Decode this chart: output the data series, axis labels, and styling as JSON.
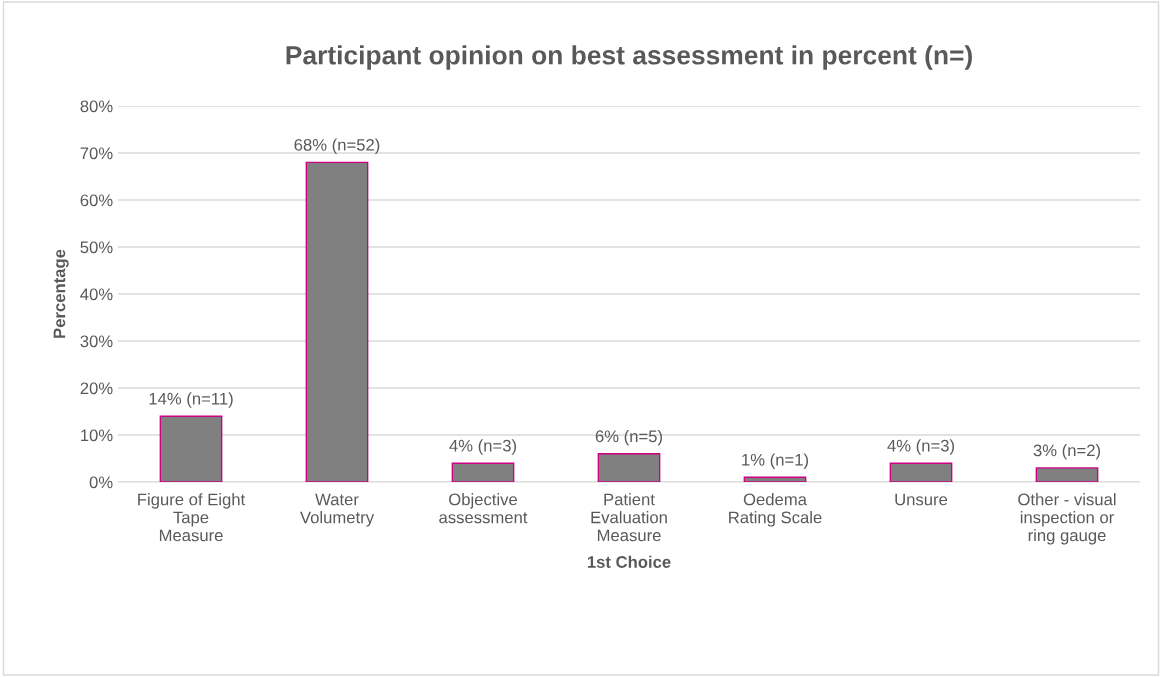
{
  "chart_data": {
    "type": "bar",
    "title": "Participant opinion on best assessment in percent (n=)",
    "xlabel": "1st Choice",
    "ylabel": "Percentage",
    "categories": [
      "Figure of Eight\nTape\nMeasure",
      "Water\nVolumetry",
      "Objective\nassessment",
      "Patient\nEvaluation\nMeasure",
      "Oedema\nRating Scale",
      "Unsure",
      "Other - visual\ninspection or\nring gauge"
    ],
    "values": [
      14,
      68,
      4,
      6,
      1,
      4,
      3
    ],
    "value_labels": [
      "14% (n=11)",
      "68% (n=52)",
      "4% (n=3)",
      "6% (n=5)",
      "1% (n=1)",
      "4% (n=3)",
      "3% (n=2)"
    ],
    "color": "#808080",
    "ylim": [
      0,
      80
    ],
    "yticks": [
      {
        "value": 0,
        "label": "0%"
      },
      {
        "value": 10,
        "label": "10%"
      },
      {
        "value": 20,
        "label": "20%"
      },
      {
        "value": 30,
        "label": "30%"
      },
      {
        "value": 40,
        "label": "40%"
      },
      {
        "value": 50,
        "label": "50%"
      },
      {
        "value": 60,
        "label": "60%"
      },
      {
        "value": 70,
        "label": "70%"
      },
      {
        "value": 80,
        "label": "80%"
      }
    ],
    "grid": "y"
  }
}
